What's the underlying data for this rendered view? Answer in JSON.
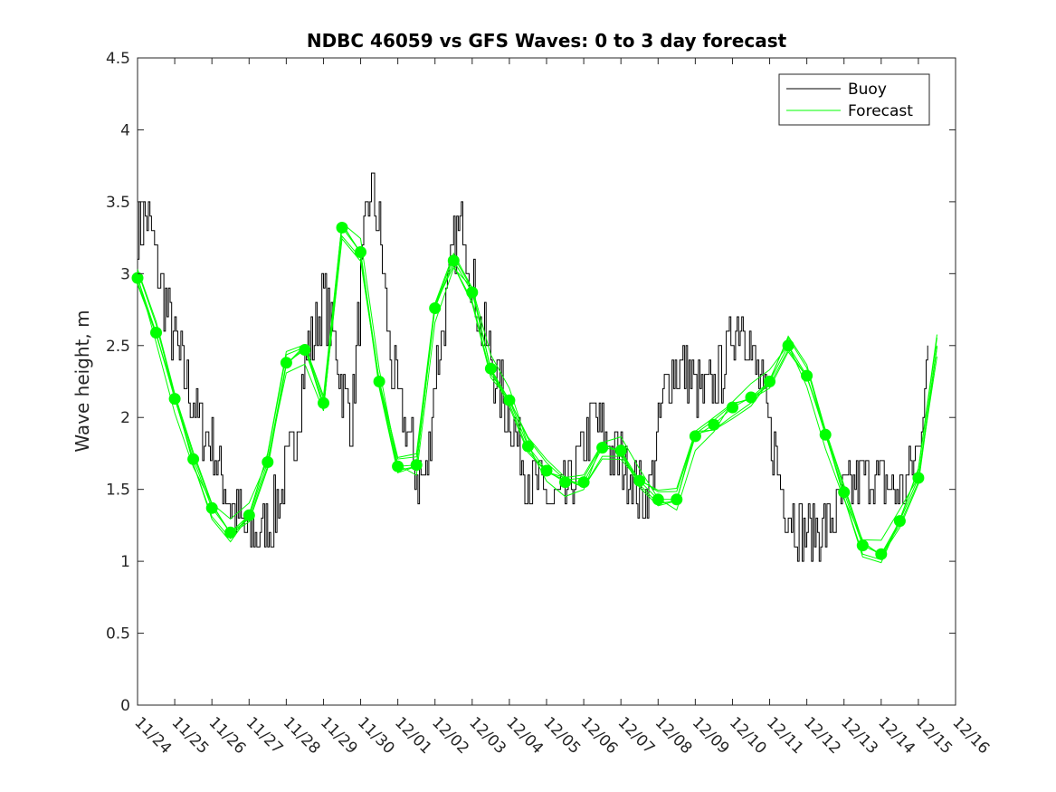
{
  "chart_data": {
    "type": "line",
    "title": "NDBC 46059 vs GFS Waves: 0 to 3 day forecast",
    "xlabel": "",
    "ylabel": "Wave height, m",
    "xlim": [
      0,
      22
    ],
    "ylim": [
      0,
      4.5
    ],
    "yticks": [
      0,
      0.5,
      1,
      1.5,
      2,
      2.5,
      3,
      3.5,
      4,
      4.5
    ],
    "ytick_labels": [
      "0",
      "0.5",
      "1",
      "1.5",
      "2",
      "2.5",
      "3",
      "3.5",
      "4",
      "4.5"
    ],
    "xticks": [
      0,
      1,
      2,
      3,
      4,
      5,
      6,
      7,
      8,
      9,
      10,
      11,
      12,
      13,
      14,
      15,
      16,
      17,
      18,
      19,
      20,
      21,
      22
    ],
    "xtick_labels": [
      "11/24",
      "11/25",
      "11/26",
      "11/27",
      "11/28",
      "11/29",
      "11/30",
      "12/01",
      "12/02",
      "12/03",
      "12/04",
      "12/05",
      "12/06",
      "12/07",
      "12/08",
      "12/09",
      "12/10",
      "12/11",
      "12/12",
      "12/13",
      "12/14",
      "12/15",
      "12/16"
    ],
    "legend": {
      "position": "top-right",
      "entries": [
        "Buoy",
        "Forecast"
      ]
    },
    "colors": {
      "buoy": "#000000",
      "forecast": "#00ff00",
      "axis": "#262626"
    },
    "series": [
      {
        "name": "Buoy",
        "x": [
          0,
          0.25,
          0.5,
          0.75,
          1,
          1.25,
          1.5,
          1.75,
          2,
          2.25,
          2.5,
          2.75,
          3,
          3.25,
          3.5,
          3.75,
          4,
          4.25,
          4.5,
          4.75,
          5,
          5.25,
          5.5,
          5.75,
          6,
          6.25,
          6.5,
          6.75,
          7,
          7.25,
          7.5,
          7.75,
          8,
          8.25,
          8.5,
          8.75,
          9,
          9.25,
          9.5,
          9.75,
          10,
          10.25,
          10.5,
          10.75,
          11,
          11.25,
          11.5,
          11.75,
          12,
          12.25,
          12.5,
          12.75,
          13,
          13.25,
          13.5,
          13.75,
          14,
          14.25,
          14.5,
          14.75,
          15,
          15.25,
          15.5,
          15.75,
          16,
          16.25,
          16.5,
          16.75,
          17,
          17.25,
          17.5,
          17.75,
          18,
          18.25,
          18.5,
          18.75,
          19,
          19.25,
          19.5,
          19.75,
          20,
          20.25,
          20.5,
          20.75,
          21,
          21.25
        ],
        "values": [
          3.3,
          3.4,
          3.1,
          2.8,
          2.5,
          2.3,
          2.1,
          1.9,
          1.8,
          1.6,
          1.4,
          1.3,
          1.15,
          1.2,
          1.25,
          1.4,
          1.6,
          1.9,
          2.4,
          2.6,
          2.8,
          2.6,
          2.2,
          2.0,
          2.9,
          3.6,
          3.3,
          2.5,
          2.1,
          1.9,
          1.6,
          1.55,
          2.3,
          2.7,
          3.2,
          3.4,
          2.9,
          2.6,
          2.4,
          2.2,
          2.0,
          1.8,
          1.6,
          1.5,
          1.45,
          1.4,
          1.45,
          1.6,
          1.8,
          2.0,
          1.9,
          1.75,
          1.7,
          1.6,
          1.45,
          1.5,
          1.9,
          2.3,
          2.35,
          2.3,
          2.2,
          2.15,
          2.2,
          2.35,
          2.6,
          2.75,
          2.45,
          2.2,
          1.9,
          1.6,
          1.35,
          1.25,
          1.2,
          1.2,
          1.25,
          1.35,
          1.45,
          1.55,
          1.6,
          1.6,
          1.55,
          1.5,
          1.5,
          1.6,
          1.8,
          2.5
        ]
      },
      {
        "name": "Forecast",
        "x": [
          0,
          0.5,
          1,
          1.5,
          2,
          2.5,
          3,
          3.5,
          4,
          4.5,
          5,
          5.5,
          6,
          6.5,
          7,
          7.5,
          8,
          8.5,
          9,
          9.5,
          10,
          10.5,
          11,
          11.5,
          12,
          12.5,
          13,
          13.5,
          14,
          14.5,
          15,
          15.5,
          16,
          16.5,
          17,
          17.5,
          18,
          18.5,
          19,
          19.5,
          20,
          20.5,
          21,
          21.5
        ],
        "values": [
          2.97,
          2.59,
          2.13,
          1.71,
          1.37,
          1.2,
          1.32,
          1.69,
          2.38,
          2.47,
          2.1,
          3.32,
          3.15,
          2.25,
          1.66,
          1.67,
          2.76,
          3.09,
          2.87,
          2.34,
          2.12,
          1.8,
          1.63,
          1.55,
          1.55,
          1.79,
          1.77,
          1.56,
          1.43,
          1.43,
          1.87,
          1.95,
          2.07,
          2.14,
          2.25,
          2.5,
          2.29,
          1.88,
          1.48,
          1.11,
          1.05,
          1.28,
          1.58,
          2.5
        ]
      }
    ],
    "forecast_markers": [
      [
        0,
        2.97
      ],
      [
        0.5,
        2.59
      ],
      [
        1,
        2.13
      ],
      [
        1.5,
        1.71
      ],
      [
        2,
        1.37
      ],
      [
        2.5,
        1.2
      ],
      [
        3,
        1.32
      ],
      [
        3.5,
        1.69
      ],
      [
        4,
        2.38
      ],
      [
        4.5,
        2.47
      ],
      [
        5,
        2.1
      ],
      [
        5.5,
        3.32
      ],
      [
        6,
        3.15
      ],
      [
        6.5,
        2.25
      ],
      [
        7,
        1.66
      ],
      [
        7.5,
        1.67
      ],
      [
        8,
        2.76
      ],
      [
        8.5,
        3.09
      ],
      [
        9,
        2.87
      ],
      [
        9.5,
        2.34
      ],
      [
        10,
        2.12
      ],
      [
        10.5,
        1.8
      ],
      [
        11,
        1.63
      ],
      [
        11.5,
        1.55
      ],
      [
        12,
        1.55
      ],
      [
        12.5,
        1.79
      ],
      [
        13,
        1.77
      ],
      [
        13.5,
        1.56
      ],
      [
        14,
        1.43
      ],
      [
        14.5,
        1.43
      ],
      [
        15,
        1.87
      ],
      [
        15.5,
        1.95
      ],
      [
        16,
        2.07
      ],
      [
        16.5,
        2.14
      ],
      [
        17,
        2.25
      ],
      [
        17.5,
        2.5
      ],
      [
        18,
        2.29
      ],
      [
        18.5,
        1.88
      ],
      [
        19,
        1.48
      ],
      [
        19.5,
        1.11
      ],
      [
        20,
        1.05
      ],
      [
        20.5,
        1.28
      ],
      [
        21,
        1.58
      ]
    ]
  }
}
